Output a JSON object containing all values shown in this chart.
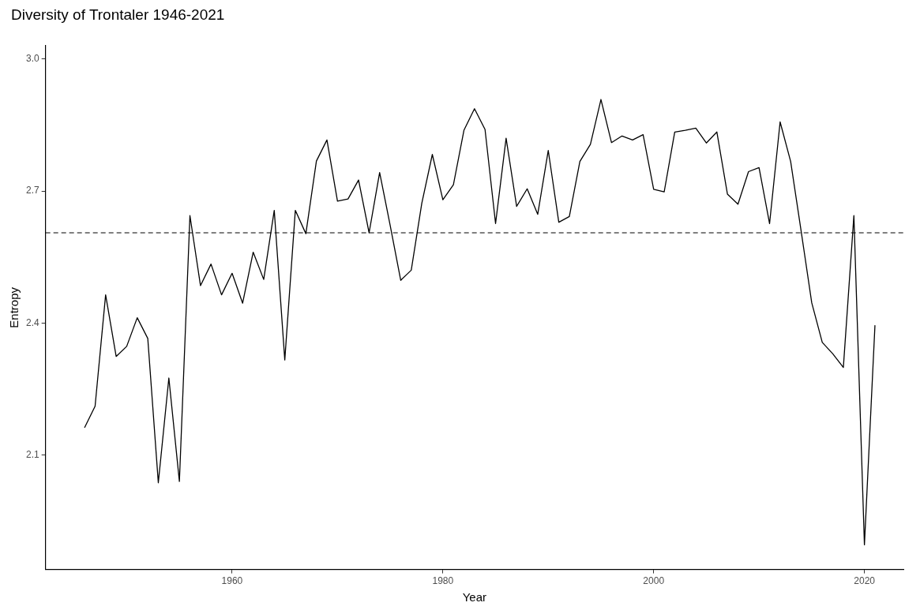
{
  "chart_data": {
    "type": "line",
    "title": "Diversity of Trontaler 1946-2021",
    "xlabel": "Year",
    "ylabel": "Entropy",
    "x": [
      1946,
      1947,
      1948,
      1949,
      1950,
      1951,
      1952,
      1953,
      1954,
      1955,
      1956,
      1957,
      1958,
      1959,
      1960,
      1961,
      1962,
      1963,
      1964,
      1965,
      1966,
      1967,
      1968,
      1969,
      1970,
      1971,
      1972,
      1973,
      1974,
      1975,
      1976,
      1977,
      1978,
      1979,
      1980,
      1981,
      1982,
      1983,
      1984,
      1985,
      1986,
      1987,
      1988,
      1989,
      1990,
      1991,
      1992,
      1993,
      1994,
      1995,
      1996,
      1997,
      1998,
      1999,
      2000,
      2001,
      2002,
      2003,
      2004,
      2005,
      2006,
      2007,
      2008,
      2009,
      2010,
      2011,
      2012,
      2013,
      2014,
      2015,
      2016,
      2017,
      2018,
      2019,
      2020,
      2021
    ],
    "series": [
      {
        "color": "#000000",
        "values": [
          2.162,
          2.211,
          2.464,
          2.324,
          2.347,
          2.412,
          2.365,
          2.037,
          2.275,
          2.04,
          2.644,
          2.485,
          2.534,
          2.464,
          2.513,
          2.445,
          2.561,
          2.499,
          2.656,
          2.316,
          2.656,
          2.603,
          2.768,
          2.816,
          2.677,
          2.682,
          2.725,
          2.605,
          2.742,
          2.622,
          2.497,
          2.52,
          2.672,
          2.783,
          2.68,
          2.714,
          2.838,
          2.887,
          2.84,
          2.626,
          2.82,
          2.665,
          2.705,
          2.647,
          2.792,
          2.629,
          2.642,
          2.767,
          2.806,
          2.908,
          2.81,
          2.825,
          2.816,
          2.828,
          2.704,
          2.698,
          2.834,
          2.838,
          2.843,
          2.809,
          2.834,
          2.693,
          2.67,
          2.744,
          2.753,
          2.626,
          2.857,
          2.767,
          2.608,
          2.446,
          2.356,
          2.33,
          2.299,
          2.644,
          1.896,
          2.395
        ]
      }
    ],
    "xlim": [
      1942.3,
      2023.7
    ],
    "xticks": [
      1960,
      1980,
      2000,
      2020
    ],
    "ylim": [
      1.84,
      3.03
    ],
    "yticks": [
      2.1,
      2.4,
      2.7,
      {
        "value": 3.0,
        "label": "3.0"
      }
    ],
    "ref_lines": [
      {
        "axis": "y",
        "value": 2.605,
        "line_style": "dashed",
        "color": "#000000"
      }
    ],
    "grid": false,
    "legend": false,
    "marker": "none"
  }
}
